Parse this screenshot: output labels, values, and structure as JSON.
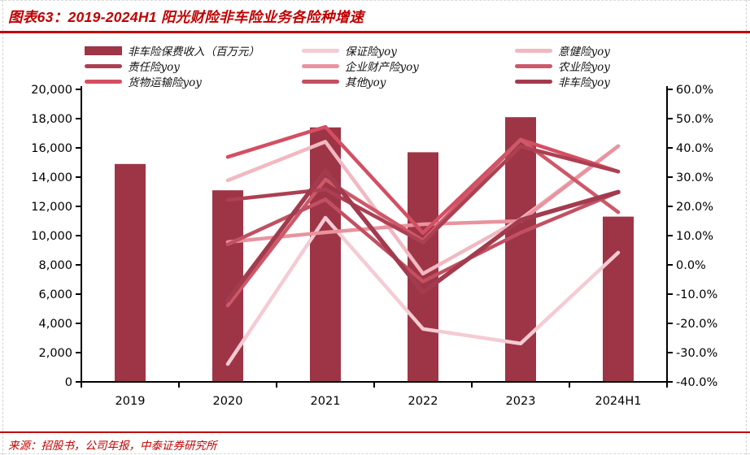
{
  "figure": {
    "title": "图表63：2019-2024H1 阳光财险非车险业务各险种增速",
    "source": "来源：招股书，公司年报，中泰证券研究所"
  },
  "colors": {
    "title_red": "#C00000",
    "rule_red": "#C00000",
    "source_red": "#C00000",
    "axis_black": "#000000",
    "bar_maroon": "#9E3546"
  },
  "legend": {
    "items": [
      {
        "label": "非车险保费收入（百万元）",
        "color": "#9E3546",
        "type": "bar"
      },
      {
        "label": "保证险yoy",
        "color": "#F5CBD3",
        "type": "line"
      },
      {
        "label": "意健险yoy",
        "color": "#F2B8C1",
        "type": "line"
      },
      {
        "label": "责任险yoy",
        "color": "#AC4052",
        "type": "line"
      },
      {
        "label": "企业财产险yoy",
        "color": "#E9939F",
        "type": "line"
      },
      {
        "label": "农业险yoy",
        "color": "#CD5868",
        "type": "line"
      },
      {
        "label": "货物运输险yoy",
        "color": "#D34F63",
        "type": "line"
      },
      {
        "label": "其他yoy",
        "color": "#C25062",
        "type": "line"
      },
      {
        "label": "非车险yoy",
        "color": "#A23B4E",
        "type": "line"
      }
    ]
  },
  "chart_data": {
    "type": "bar+line",
    "title": "2019-2024H1 阳光财险非车险业务各险种增速",
    "categories": [
      "2019",
      "2020",
      "2021",
      "2022",
      "2023",
      "2024H1"
    ],
    "bar_series": {
      "name": "非车险保费收入（百万元）",
      "axis": "left",
      "color": "#9E3546",
      "values": [
        14900,
        13100,
        17400,
        15700,
        18100,
        11300
      ]
    },
    "line_categories": [
      "2020",
      "2021",
      "2022",
      "2023",
      "2024H1"
    ],
    "line_series": [
      {
        "name": "保证险yoy",
        "color": "#F5CBD3",
        "width": 4.5,
        "values": [
          -33.9,
          16.1,
          -21.9,
          -26.9,
          4.2
        ]
      },
      {
        "name": "意健险yoy",
        "color": "#F2B8C1",
        "width": 4.5,
        "values": [
          28.9,
          42.1,
          -3.0,
          15.6,
          40.6
        ]
      },
      {
        "name": "企业财产险yoy",
        "color": "#E9939F",
        "width": 4.5,
        "values": [
          7.8,
          11.1,
          13.9,
          15.0,
          40.6
        ]
      },
      {
        "name": "货物运输险yoy",
        "color": "#D34F63",
        "width": 4.5,
        "values": [
          36.9,
          47.2,
          10.9,
          42.8,
          31.9
        ]
      },
      {
        "name": "农业险yoy",
        "color": "#CD5868",
        "width": 4.5,
        "values": [
          -13.9,
          29.2,
          8.3,
          42.8,
          18.0
        ]
      },
      {
        "name": "其他yoy",
        "color": "#C25062",
        "width": 4.5,
        "values": [
          7.0,
          22.4,
          -5.7,
          11.0,
          24.9
        ]
      },
      {
        "name": "责任险yoy",
        "color": "#AC4052",
        "width": 4.5,
        "values": [
          22.2,
          25.8,
          7.7,
          40.5,
          31.9
        ]
      },
      {
        "name": "非车险yoy",
        "color": "#A23B4E",
        "width": 5.5,
        "values": [
          -12.1,
          32.1,
          -9.4,
          15.3,
          24.9
        ]
      }
    ],
    "left_axis": {
      "min": 0,
      "max": 20000,
      "step": 2000,
      "labels": [
        "20,000",
        "18,000",
        "16,000",
        "14,000",
        "12,000",
        "10,000",
        "8,000",
        "6,000",
        "4,000",
        "2,000",
        "0"
      ]
    },
    "right_axis": {
      "min": -40,
      "max": 60,
      "step": 10,
      "labels": [
        "60.0%",
        "50.0%",
        "40.0%",
        "30.0%",
        "20.0%",
        "10.0%",
        "0.0%",
        "-10.0%",
        "-20.0%",
        "-30.0%",
        "-40.0%"
      ]
    },
    "legend_position": "top",
    "grid": false
  }
}
